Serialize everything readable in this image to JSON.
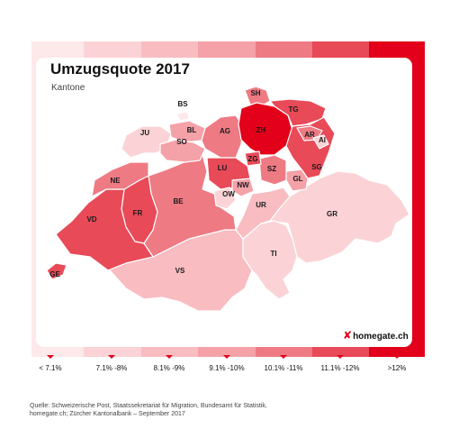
{
  "title": "Umzugsquote 2017",
  "subtitle": "Kantone",
  "brand": {
    "icon": "x-logo-icon",
    "name": "homegate.ch"
  },
  "colors": {
    "accent": "#e2001a",
    "scale": [
      "#fde8ea",
      "#fbd3d6",
      "#f8bcc1",
      "#f4a1a8",
      "#ee7a84",
      "#e84a58",
      "#e2001a"
    ]
  },
  "legend": [
    {
      "label": "< 7.1%"
    },
    {
      "label": "7.1% -8%"
    },
    {
      "label": "8.1% -9%"
    },
    {
      "label": "9.1% -10%"
    },
    {
      "label": "10.1% -11%"
    },
    {
      "label": "11.1% -12%"
    },
    {
      "label": ">12%"
    }
  ],
  "cantons": [
    {
      "code": "SH",
      "class": 4
    },
    {
      "code": "BS",
      "class": 0
    },
    {
      "code": "TG",
      "class": 5
    },
    {
      "code": "ZH",
      "class": 6
    },
    {
      "code": "JU",
      "class": 1
    },
    {
      "code": "BL",
      "class": 3
    },
    {
      "code": "AG",
      "class": 4
    },
    {
      "code": "SO",
      "class": 3
    },
    {
      "code": "AR",
      "class": 4
    },
    {
      "code": "AI",
      "class": 1
    },
    {
      "code": "SG",
      "class": 5
    },
    {
      "code": "ZG",
      "class": 5
    },
    {
      "code": "SZ",
      "class": 4
    },
    {
      "code": "LU",
      "class": 5
    },
    {
      "code": "NE",
      "class": 4
    },
    {
      "code": "GL",
      "class": 3
    },
    {
      "code": "NW",
      "class": 3
    },
    {
      "code": "OW",
      "class": 1
    },
    {
      "code": "BE",
      "class": 4
    },
    {
      "code": "FR",
      "class": 5
    },
    {
      "code": "UR",
      "class": 2
    },
    {
      "code": "GR",
      "class": 1
    },
    {
      "code": "VD",
      "class": 5
    },
    {
      "code": "TI",
      "class": 1
    },
    {
      "code": "VS",
      "class": 2
    },
    {
      "code": "GE",
      "class": 5
    }
  ],
  "source": "Quelle: Schweizerische Post, Staatssekretariat für Migration, Bundesamt für Statistik, homegate.ch; Zürcher Kantonalbank – September 2017"
}
